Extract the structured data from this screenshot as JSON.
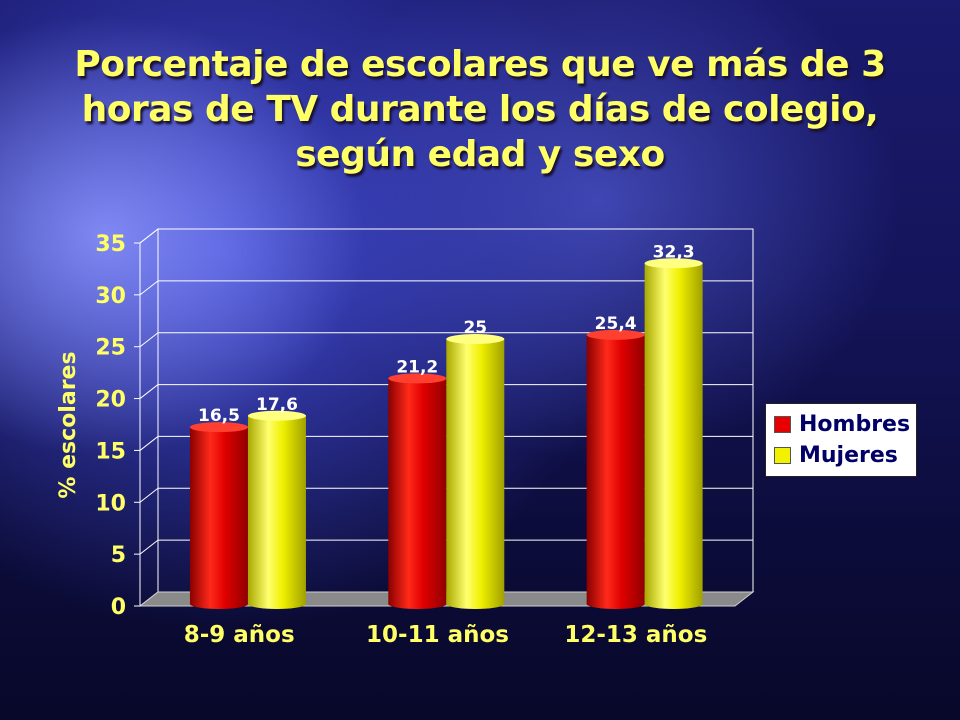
{
  "title_lines": [
    "Porcentaje de escolares que ve más de 3",
    "horas de TV durante los días de colegio,",
    "según edad y sexo"
  ],
  "colors": {
    "title": "#ffff66",
    "hombres": "#e60000",
    "mujeres": "#f2f200"
  },
  "chart_data": {
    "type": "bar",
    "title": "Porcentaje de escolares que ve más de 3 horas de TV durante los días de colegio, según edad y sexo",
    "xlabel": "",
    "ylabel": "% escolares",
    "categories": [
      "8-9 años",
      "10-11 años",
      "12-13 años"
    ],
    "series": [
      {
        "name": "Hombres",
        "values": [
          16.5,
          21.2,
          25.4
        ],
        "labels": [
          "16,5",
          "21,2",
          "25,4"
        ]
      },
      {
        "name": "Mujeres",
        "values": [
          17.6,
          25,
          32.3
        ],
        "labels": [
          "17,6",
          "25",
          "32,3"
        ]
      }
    ],
    "ylim": [
      0,
      35
    ],
    "yticks": [
      0,
      5,
      10,
      15,
      20,
      25,
      30,
      35
    ],
    "grid": true,
    "legend_position": "right"
  }
}
